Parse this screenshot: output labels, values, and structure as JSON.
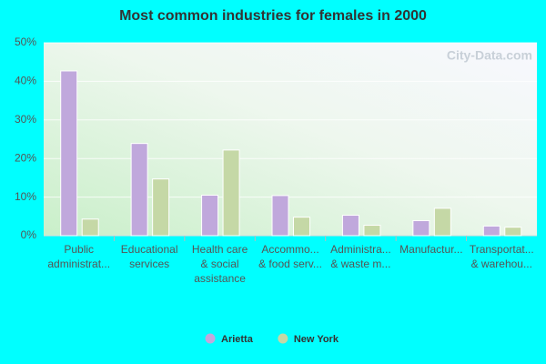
{
  "chart_data": {
    "type": "bar",
    "title": "Most common industries for females in 2000",
    "watermark": "City-Data.com",
    "categories": [
      [
        "Public",
        "administrat..."
      ],
      [
        "Educational",
        "services"
      ],
      [
        "Health care",
        "& social",
        "assistance"
      ],
      [
        "Accommo...",
        "& food serv..."
      ],
      [
        "Administra...",
        "& waste m..."
      ],
      [
        "Manufactur..."
      ],
      [
        "Transportat...",
        "& warehou..."
      ]
    ],
    "series": [
      {
        "name": "Arietta",
        "color": "#c0a8dc",
        "values": [
          42.7,
          23.9,
          10.5,
          10.4,
          5.3,
          3.9,
          2.5
        ]
      },
      {
        "name": "New York",
        "color": "#c5d8a6",
        "values": [
          4.3,
          14.7,
          22.2,
          4.8,
          2.7,
          7.1,
          2.2
        ]
      }
    ],
    "ylim": [
      0,
      50
    ],
    "yticks": [
      {
        "value": 0,
        "label": "0%"
      },
      {
        "value": 10,
        "label": "10%"
      },
      {
        "value": 20,
        "label": "20%"
      },
      {
        "value": 30,
        "label": "30%"
      },
      {
        "value": 40,
        "label": "40%"
      },
      {
        "value": 50,
        "label": "50%"
      }
    ],
    "grid": true
  }
}
